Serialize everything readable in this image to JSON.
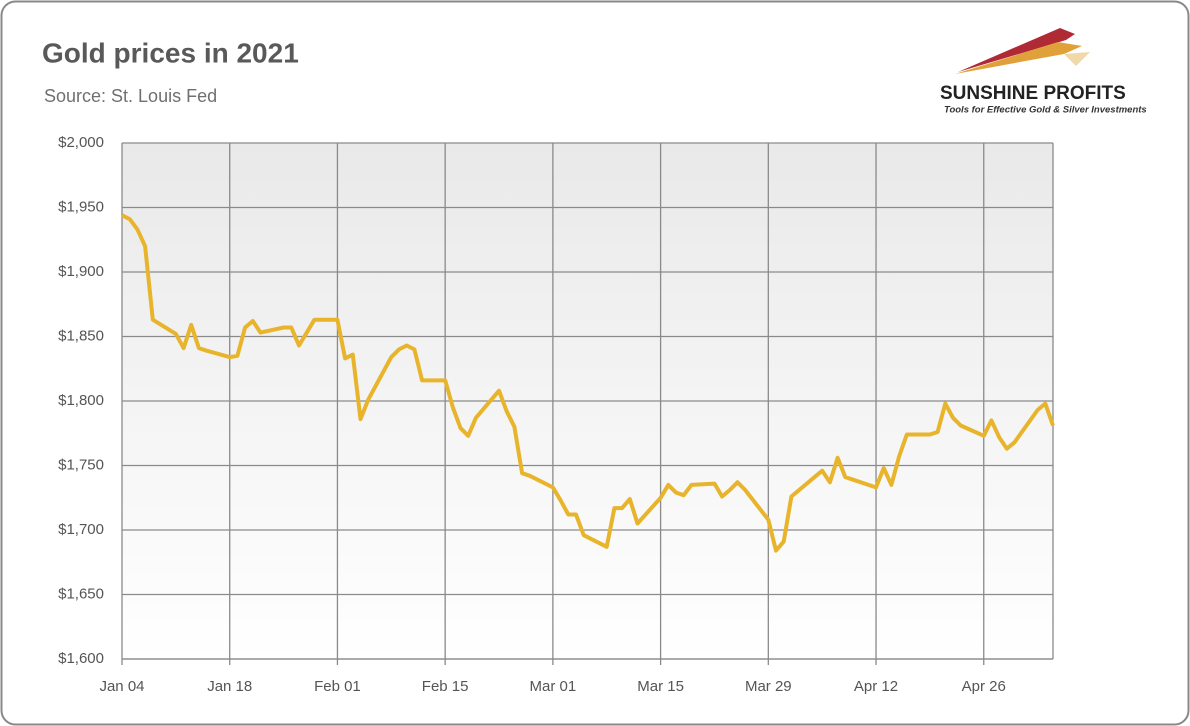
{
  "chart_data": {
    "type": "line",
    "title": "Gold prices in 2021",
    "subtitle": "Source: St. Louis Fed",
    "logo": {
      "name": "SUNSHINE PROFITS",
      "tagline": "Tools for Effective Gold & Silver Investments"
    },
    "x": [
      "Jan 04",
      "Jan 05",
      "Jan 06",
      "Jan 07",
      "Jan 08",
      "Jan 11",
      "Jan 12",
      "Jan 13",
      "Jan 14",
      "Jan 15",
      "Jan 18",
      "Jan 19",
      "Jan 20",
      "Jan 21",
      "Jan 22",
      "Jan 25",
      "Jan 26",
      "Jan 27",
      "Jan 28",
      "Jan 29",
      "Feb 01",
      "Feb 02",
      "Feb 03",
      "Feb 04",
      "Feb 05",
      "Feb 08",
      "Feb 09",
      "Feb 10",
      "Feb 11",
      "Feb 12",
      "Feb 15",
      "Feb 16",
      "Feb 17",
      "Feb 18",
      "Feb 19",
      "Feb 22",
      "Feb 23",
      "Feb 24",
      "Feb 25",
      "Feb 26",
      "Mar 01",
      "Mar 02",
      "Mar 03",
      "Mar 04",
      "Mar 05",
      "Mar 08",
      "Mar 09",
      "Mar 10",
      "Mar 11",
      "Mar 12",
      "Mar 15",
      "Mar 16",
      "Mar 17",
      "Mar 18",
      "Mar 19",
      "Mar 22",
      "Mar 23",
      "Mar 24",
      "Mar 25",
      "Mar 26",
      "Mar 29",
      "Mar 30",
      "Mar 31",
      "Apr 01",
      "Apr 05",
      "Apr 06",
      "Apr 07",
      "Apr 08",
      "Apr 09",
      "Apr 12",
      "Apr 13",
      "Apr 14",
      "Apr 15",
      "Apr 16",
      "Apr 19",
      "Apr 20",
      "Apr 21",
      "Apr 22",
      "Apr 23",
      "Apr 26",
      "Apr 27",
      "Apr 28",
      "Apr 29",
      "Apr 30",
      "May 03",
      "May 04",
      "May 05"
    ],
    "series": [
      {
        "name": "Gold price",
        "color": "#e8b42c",
        "values": [
          1944,
          1941,
          1933,
          1920,
          1863,
          1852,
          1841,
          1859,
          1841,
          1839,
          1834,
          1835,
          1857,
          1862,
          1853,
          1857,
          1857,
          1843,
          1853,
          1863,
          1863,
          1833,
          1836,
          1786,
          1801,
          1834,
          1840,
          1843,
          1840,
          1816,
          1816,
          1795,
          1779,
          1773,
          1787,
          1808,
          1792,
          1780,
          1744,
          1742,
          1733,
          1723,
          1712,
          1712,
          1696,
          1687,
          1717,
          1717,
          1724,
          1705,
          1725,
          1735,
          1729,
          1727,
          1735,
          1736,
          1726,
          1731,
          1737,
          1731,
          1708,
          1684,
          1691,
          1726,
          1746,
          1737,
          1756,
          1741,
          1739,
          1733,
          1748,
          1735,
          1757,
          1774,
          1774,
          1776,
          1798,
          1787,
          1781,
          1773,
          1785,
          1772,
          1763,
          1768,
          1793,
          1798,
          1781
        ]
      }
    ],
    "xlim": [
      "Jan 04",
      "May 05"
    ],
    "xticks": [
      "Jan 04",
      "Jan 18",
      "Feb 01",
      "Feb 15",
      "Mar 01",
      "Mar 15",
      "Mar 29",
      "Apr 12",
      "Apr 26"
    ],
    "ylim": [
      1600,
      2000
    ],
    "yticks": [
      {
        "value": 1600,
        "label": "$1,600"
      },
      {
        "value": 1650,
        "label": "$1,650"
      },
      {
        "value": 1700,
        "label": "$1,700"
      },
      {
        "value": 1750,
        "label": "$1,750"
      },
      {
        "value": 1800,
        "label": "$1,800"
      },
      {
        "value": 1850,
        "label": "$1,850"
      },
      {
        "value": 1900,
        "label": "$1,900"
      },
      {
        "value": 1950,
        "label": "$1,950"
      },
      {
        "value": 2000,
        "label": "$2,000"
      }
    ],
    "grid": true
  }
}
